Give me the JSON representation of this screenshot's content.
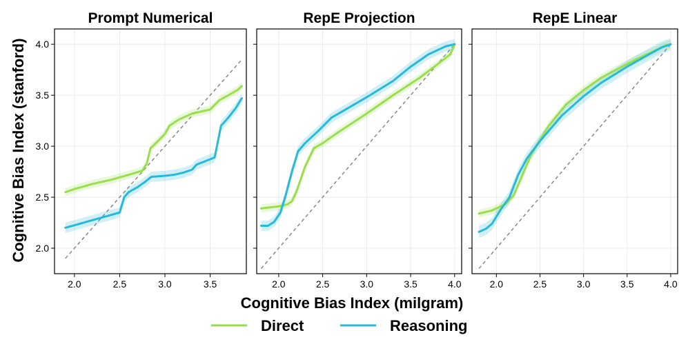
{
  "chart_data": {
    "type": "line",
    "xlabel": "Cognitive Bias Index (milgram)",
    "ylabel": "Cognitive Bias Index (stanford)",
    "ylim": [
      1.75,
      4.15
    ],
    "yticks": [
      2.0,
      2.5,
      3.0,
      3.5,
      4.0
    ],
    "ytick_labels": [
      "2.0",
      "2.5",
      "3.0",
      "3.5",
      "4.0"
    ],
    "legend": {
      "placement": "bottom-center",
      "entries": [
        {
          "name": "Direct",
          "color": "#9ADE50"
        },
        {
          "name": "Reasoning",
          "color": "#28B8D8"
        }
      ]
    },
    "grid": true,
    "panels": [
      {
        "title": "Prompt Numerical",
        "xlim": [
          1.78,
          3.9
        ],
        "xticks": [
          2.0,
          2.5,
          3.0,
          3.5
        ],
        "xtick_labels": [
          "2.0",
          "2.5",
          "3.0",
          "3.5"
        ],
        "diagonal": [
          [
            1.9,
            1.9
          ],
          [
            3.85,
            3.85
          ]
        ],
        "series": [
          {
            "name": "Direct",
            "color": "#9ADE50",
            "band": 0.04,
            "points": [
              [
                1.9,
                2.55
              ],
              [
                2.0,
                2.58
              ],
              [
                2.2,
                2.63
              ],
              [
                2.4,
                2.67
              ],
              [
                2.6,
                2.72
              ],
              [
                2.75,
                2.76
              ],
              [
                2.8,
                2.83
              ],
              [
                2.84,
                2.98
              ],
              [
                2.9,
                3.03
              ],
              [
                3.0,
                3.12
              ],
              [
                3.05,
                3.2
              ],
              [
                3.15,
                3.26
              ],
              [
                3.3,
                3.32
              ],
              [
                3.5,
                3.36
              ],
              [
                3.6,
                3.45
              ],
              [
                3.7,
                3.5
              ],
              [
                3.8,
                3.55
              ],
              [
                3.85,
                3.59
              ]
            ]
          },
          {
            "name": "Reasoning",
            "color": "#28B8D8",
            "band": 0.05,
            "points": [
              [
                1.9,
                2.2
              ],
              [
                2.1,
                2.25
              ],
              [
                2.3,
                2.3
              ],
              [
                2.5,
                2.35
              ],
              [
                2.55,
                2.5
              ],
              [
                2.6,
                2.55
              ],
              [
                2.7,
                2.6
              ],
              [
                2.78,
                2.65
              ],
              [
                2.85,
                2.7
              ],
              [
                3.0,
                2.71
              ],
              [
                3.1,
                2.72
              ],
              [
                3.2,
                2.74
              ],
              [
                3.3,
                2.77
              ],
              [
                3.35,
                2.82
              ],
              [
                3.55,
                2.89
              ],
              [
                3.62,
                3.2
              ],
              [
                3.7,
                3.28
              ],
              [
                3.78,
                3.37
              ],
              [
                3.85,
                3.47
              ]
            ]
          }
        ]
      },
      {
        "title": "RepE Projection",
        "xlim": [
          1.75,
          4.08
        ],
        "xticks": [
          2.0,
          2.5,
          3.0,
          3.5,
          4.0
        ],
        "xtick_labels": [
          "2.0",
          "2.5",
          "3.0",
          "3.5",
          "4.0"
        ],
        "diagonal": [
          [
            1.8,
            1.8
          ],
          [
            4.0,
            4.0
          ]
        ],
        "series": [
          {
            "name": "Direct",
            "color": "#9ADE50",
            "band": 0.04,
            "points": [
              [
                1.8,
                2.39
              ],
              [
                2.0,
                2.41
              ],
              [
                2.1,
                2.43
              ],
              [
                2.15,
                2.46
              ],
              [
                2.2,
                2.55
              ],
              [
                2.3,
                2.8
              ],
              [
                2.4,
                2.98
              ],
              [
                2.5,
                3.03
              ],
              [
                2.7,
                3.15
              ],
              [
                3.0,
                3.32
              ],
              [
                3.3,
                3.5
              ],
              [
                3.6,
                3.67
              ],
              [
                3.8,
                3.8
              ],
              [
                3.95,
                3.9
              ],
              [
                4.0,
                4.0
              ]
            ]
          },
          {
            "name": "Reasoning",
            "color": "#28B8D8",
            "band": 0.05,
            "points": [
              [
                1.8,
                2.22
              ],
              [
                1.88,
                2.22
              ],
              [
                1.95,
                2.26
              ],
              [
                2.02,
                2.35
              ],
              [
                2.08,
                2.52
              ],
              [
                2.15,
                2.75
              ],
              [
                2.22,
                2.95
              ],
              [
                2.3,
                3.03
              ],
              [
                2.45,
                3.15
              ],
              [
                2.6,
                3.28
              ],
              [
                2.8,
                3.38
              ],
              [
                3.0,
                3.48
              ],
              [
                3.3,
                3.64
              ],
              [
                3.5,
                3.78
              ],
              [
                3.7,
                3.9
              ],
              [
                3.9,
                3.98
              ],
              [
                4.0,
                4.0
              ]
            ]
          }
        ]
      },
      {
        "title": "RepE Linear",
        "xlim": [
          1.72,
          4.08
        ],
        "xticks": [
          2.0,
          2.5,
          3.0,
          3.5,
          4.0
        ],
        "xtick_labels": [
          "2.0",
          "2.5",
          "3.0",
          "3.5",
          "4.0"
        ],
        "diagonal": [
          [
            1.8,
            1.8
          ],
          [
            4.0,
            4.0
          ]
        ],
        "series": [
          {
            "name": "Direct",
            "color": "#9ADE50",
            "band": 0.04,
            "points": [
              [
                1.8,
                2.34
              ],
              [
                1.95,
                2.37
              ],
              [
                2.1,
                2.43
              ],
              [
                2.2,
                2.52
              ],
              [
                2.3,
                2.72
              ],
              [
                2.4,
                2.92
              ],
              [
                2.6,
                3.2
              ],
              [
                2.8,
                3.41
              ],
              [
                3.0,
                3.55
              ],
              [
                3.2,
                3.67
              ],
              [
                3.4,
                3.76
              ],
              [
                3.6,
                3.85
              ],
              [
                3.8,
                3.93
              ],
              [
                3.95,
                3.99
              ],
              [
                4.0,
                4.0
              ]
            ]
          },
          {
            "name": "Reasoning",
            "color": "#28B8D8",
            "band": 0.06,
            "points": [
              [
                1.8,
                2.16
              ],
              [
                1.88,
                2.19
              ],
              [
                1.95,
                2.24
              ],
              [
                2.05,
                2.38
              ],
              [
                2.15,
                2.5
              ],
              [
                2.25,
                2.72
              ],
              [
                2.35,
                2.88
              ],
              [
                2.5,
                3.05
              ],
              [
                2.75,
                3.3
              ],
              [
                3.0,
                3.49
              ],
              [
                3.2,
                3.62
              ],
              [
                3.5,
                3.78
              ],
              [
                3.75,
                3.9
              ],
              [
                3.9,
                3.97
              ],
              [
                4.0,
                4.0
              ]
            ]
          }
        ]
      }
    ]
  }
}
